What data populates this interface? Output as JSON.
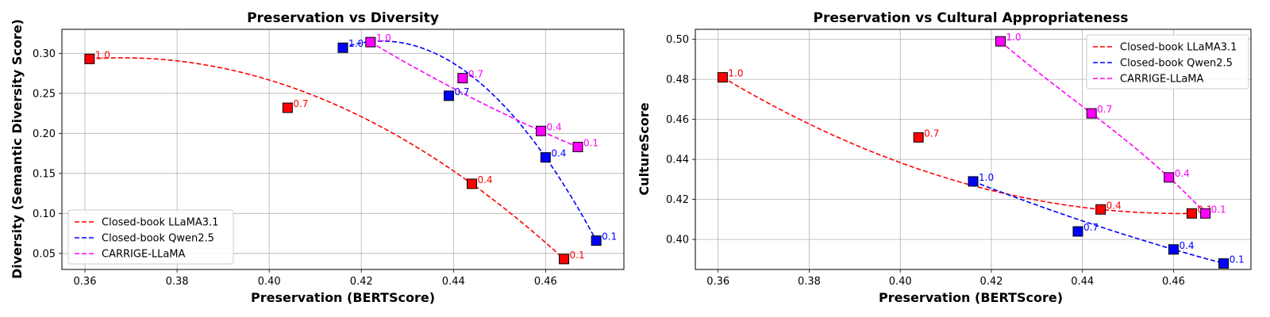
{
  "chart_data": [
    {
      "type": "scatter",
      "title": "Preservation vs Diversity",
      "xlabel": "Preservation (BERTScore)",
      "ylabel": "Diversity (Semantic Diversity Score)",
      "xlim": [
        0.355,
        0.477
      ],
      "ylim": [
        0.03,
        0.33
      ],
      "xticks": [
        "0.36",
        "0.38",
        "0.40",
        "0.42",
        "0.44",
        "0.46"
      ],
      "yticks": [
        "0.05",
        "0.10",
        "0.15",
        "0.20",
        "0.25",
        "0.30"
      ],
      "grid": true,
      "legend_position": "lower-left",
      "series": [
        {
          "name": "Closed-book LLaMA3.1",
          "color": "#ff0000",
          "x": [
            0.361,
            0.404,
            0.444,
            0.464
          ],
          "y": [
            0.293,
            0.232,
            0.137,
            0.043
          ],
          "labels": [
            "1.0",
            "0.7",
            "0.4",
            "0.1"
          ]
        },
        {
          "name": "Closed-book Qwen2.5",
          "color": "#0000ff",
          "x": [
            0.416,
            0.439,
            0.46,
            0.471
          ],
          "y": [
            0.307,
            0.247,
            0.17,
            0.066
          ],
          "labels": [
            "1.0",
            "0.7",
            "0.4",
            "0.1"
          ]
        },
        {
          "name": "CARRIGE-LLaMA",
          "color": "#ff00ff",
          "x": [
            0.422,
            0.442,
            0.459,
            0.467
          ],
          "y": [
            0.314,
            0.269,
            0.203,
            0.183
          ],
          "labels": [
            "1.0",
            "0.7",
            "0.4",
            "0.1"
          ]
        }
      ]
    },
    {
      "type": "scatter",
      "title": "Preservation vs Cultural Appropriateness",
      "xlabel": "Preservation (BERTScore)",
      "ylabel": "CultureScore",
      "xlim": [
        0.355,
        0.477
      ],
      "ylim": [
        0.385,
        0.505
      ],
      "xticks": [
        "0.36",
        "0.38",
        "0.40",
        "0.42",
        "0.44",
        "0.46"
      ],
      "yticks": [
        "0.40",
        "0.42",
        "0.44",
        "0.46",
        "0.48",
        "0.50"
      ],
      "grid": true,
      "legend_position": "upper-right",
      "series": [
        {
          "name": "Closed-book LLaMA3.1",
          "color": "#ff0000",
          "x": [
            0.361,
            0.404,
            0.444,
            0.464
          ],
          "y": [
            0.481,
            0.451,
            0.415,
            0.413
          ],
          "labels": [
            "1.0",
            "0.7",
            "0.4",
            "0.1"
          ]
        },
        {
          "name": "Closed-book Qwen2.5",
          "color": "#0000ff",
          "x": [
            0.416,
            0.439,
            0.46,
            0.471
          ],
          "y": [
            0.429,
            0.404,
            0.395,
            0.388
          ],
          "labels": [
            "1.0",
            "0.7",
            "0.4",
            "0.1"
          ]
        },
        {
          "name": "CARRIGE-LLaMA",
          "color": "#ff00ff",
          "x": [
            0.422,
            0.442,
            0.459,
            0.467
          ],
          "y": [
            0.499,
            0.463,
            0.431,
            0.413
          ],
          "labels": [
            "1.0",
            "0.7",
            "0.4",
            "0.1"
          ]
        }
      ]
    }
  ]
}
